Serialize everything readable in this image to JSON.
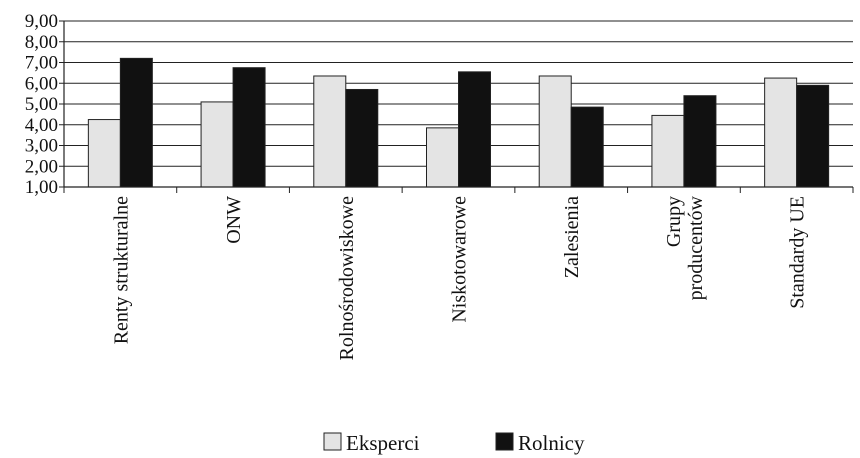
{
  "chart_data": {
    "type": "bar",
    "categories": [
      [
        "Renty strukturalne"
      ],
      [
        "ONW"
      ],
      [
        "Rolnośrodowiskowe"
      ],
      [
        "Niskotowarowe"
      ],
      [
        "Zalesienia"
      ],
      [
        "Grupy",
        "producentów"
      ],
      [
        "Standardy UE"
      ]
    ],
    "series": [
      {
        "name": "Eksperci",
        "color": "#e4e4e4",
        "values": [
          4.25,
          5.1,
          6.35,
          3.85,
          6.35,
          4.45,
          6.25
        ]
      },
      {
        "name": "Rolnicy",
        "color": "#111111",
        "values": [
          7.2,
          6.75,
          5.7,
          6.55,
          4.85,
          5.4,
          5.9
        ]
      }
    ],
    "yticks": [
      "1,00",
      "2,00",
      "3,00",
      "4,00",
      "5,00",
      "6,00",
      "7,00",
      "8,00",
      "9,00"
    ],
    "ylim": [
      1,
      9
    ],
    "grid": true,
    "legend_position": "bottom"
  }
}
